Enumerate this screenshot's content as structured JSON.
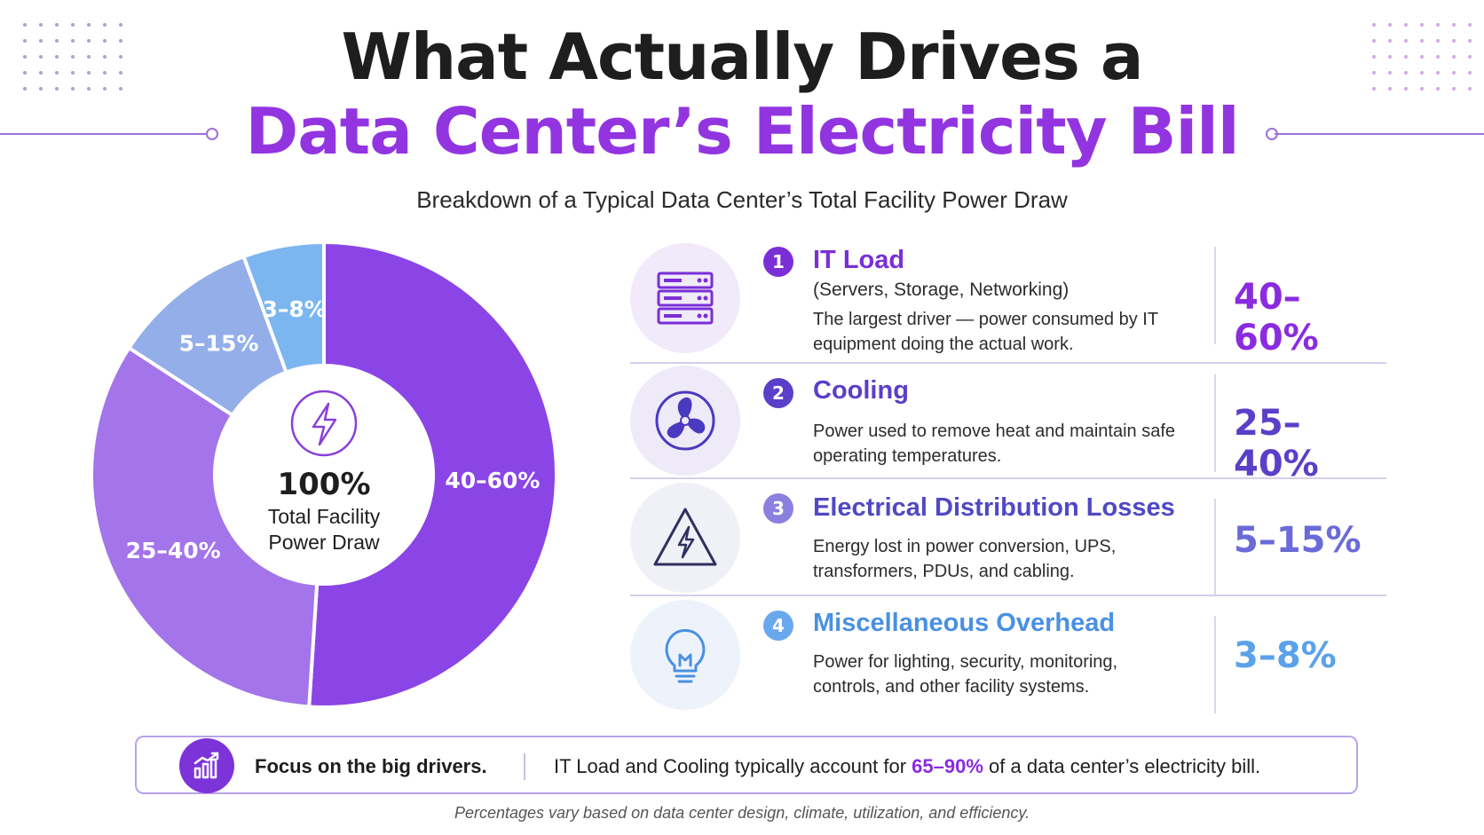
{
  "header": {
    "title_line1": "What Actually Drives a",
    "title_line2": "Data Center’s Electricity Bill",
    "subtitle": "Breakdown of a Typical Data Center’s Total Facility Power Draw"
  },
  "chart_data": {
    "type": "pie",
    "title": "",
    "center": {
      "value": "100%",
      "line1": "Total Facility",
      "line2": "Power Draw"
    },
    "slices": [
      {
        "label": "40–60%",
        "category": "IT Load",
        "value": 50,
        "color": "#8b45e6"
      },
      {
        "label": "25–40%",
        "category": "Cooling",
        "value": 32.5,
        "color": "#a374ea"
      },
      {
        "label": "5–15%",
        "category": "Electrical Distribution Losses",
        "value": 10,
        "color": "#93aee9"
      },
      {
        "label": "3–8%",
        "category": "Miscellaneous Overhead",
        "value": 5.5,
        "color": "#7cb6f0"
      }
    ]
  },
  "rows": [
    {
      "number": "1",
      "title": "IT Load",
      "subtitle": "(Servers, Storage, Networking)",
      "description": "The largest driver — power consumed by IT equipment doing the actual work.",
      "percent": "40–60%",
      "icon": "server-rack-icon",
      "color": "#7a2fd6",
      "icon_bg": "#f1eafb"
    },
    {
      "number": "2",
      "title": "Cooling",
      "subtitle": "",
      "description": "Power used to remove heat and maintain safe operating temperatures.",
      "percent": "25–40%",
      "icon": "fan-icon",
      "color": "#5a3fc8",
      "icon_bg": "#eeeaf8"
    },
    {
      "number": "3",
      "title": "Electrical Distribution Losses",
      "subtitle": "",
      "description": "Energy lost in power conversion, UPS, transformers, PDUs, and cabling.",
      "percent": "5–15%",
      "icon": "electrical-warning-icon",
      "color": "#5048c4",
      "icon_bg": "#f0f0f7"
    },
    {
      "number": "4",
      "title": "Miscellaneous Overhead",
      "subtitle": "",
      "description": "Power for lighting, security, monitoring, controls, and other facility systems.",
      "percent": "3–8%",
      "icon": "light-bulb-icon",
      "color": "#4a90e2",
      "icon_bg": "#eef3fb"
    }
  ],
  "callout": {
    "bold": "Focus on the big drivers.",
    "text_before": "IT Load and Cooling typically account for ",
    "highlight": "65–90%",
    "text_after": " of a data center’s electricity bill.",
    "icon": "growth-chart-icon"
  },
  "footnote": "Percentages vary based on data center design, climate, utilization, and efficiency."
}
